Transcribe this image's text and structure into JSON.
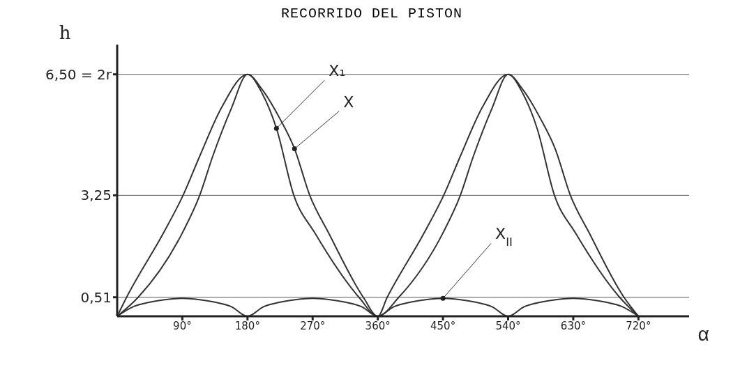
{
  "chart_data": {
    "type": "line",
    "title": "RECORRIDO DEL PISTON",
    "xlabel": "α",
    "ylabel": "h",
    "xlim": [
      0,
      790
    ],
    "ylim": [
      0,
      7.3
    ],
    "xticks": [
      {
        "value": 90,
        "label": "90°"
      },
      {
        "value": 180,
        "label": "180°"
      },
      {
        "value": 270,
        "label": "270°"
      },
      {
        "value": 360,
        "label": "360°"
      },
      {
        "value": 450,
        "label": "450°"
      },
      {
        "value": 540,
        "label": "540°"
      },
      {
        "value": 630,
        "label": "630°"
      },
      {
        "value": 720,
        "label": "720°"
      }
    ],
    "yticks": [
      {
        "value": 0.51,
        "label": "0,51"
      },
      {
        "value": 3.25,
        "label": "3,25"
      },
      {
        "value": 6.5,
        "label": "6,50 = 2r"
      }
    ],
    "grid": "y",
    "marker": "none",
    "line_style": "solid",
    "series": [
      {
        "name": "X₁",
        "color": "#333333",
        "x": [
          0,
          29,
          90,
          114,
          132,
          158,
          180,
          200,
          220,
          244,
          273,
          334,
          360,
          389,
          450,
          474,
          492,
          518,
          540,
          560,
          580,
          604,
          633,
          694,
          720
        ],
        "values": [
          0,
          0.51,
          2.24,
          3.25,
          4.3,
          5.6,
          6.5,
          6.0,
          5.05,
          3.25,
          2.24,
          0.51,
          0,
          0.51,
          2.24,
          3.25,
          4.3,
          5.6,
          6.5,
          6.0,
          5.05,
          3.25,
          2.24,
          0.51,
          0
        ]
      },
      {
        "name": "X",
        "color": "#333333",
        "x": [
          0,
          13,
          64,
          91,
          114,
          144,
          180,
          200,
          225,
          245,
          266,
          292,
          340,
          360,
          373,
          424,
          451,
          474,
          504,
          540,
          560,
          585,
          605,
          626,
          652,
          700,
          720
        ],
        "values": [
          0,
          0.51,
          2.24,
          3.25,
          4.3,
          5.6,
          6.5,
          6.1,
          5.3,
          4.5,
          3.25,
          2.24,
          0.51,
          0,
          0.51,
          2.24,
          3.25,
          4.3,
          5.6,
          6.5,
          6.1,
          5.3,
          4.5,
          3.25,
          2.24,
          0.51,
          0
        ]
      },
      {
        "name": "X$_{II}$",
        "color": "#333333",
        "x": [
          0,
          22.5,
          45,
          67.5,
          90,
          112.5,
          135,
          157.5,
          180,
          202.5,
          225,
          247.5,
          270,
          292.5,
          315,
          337.5,
          360,
          382.5,
          405,
          427.5,
          450,
          472.5,
          495,
          517.5,
          540,
          562.5,
          585,
          607.5,
          630,
          652.5,
          675,
          697.5,
          720
        ],
        "values": [
          0,
          0.26,
          0.38,
          0.45,
          0.48,
          0.45,
          0.38,
          0.26,
          0,
          0.26,
          0.38,
          0.45,
          0.48,
          0.45,
          0.38,
          0.26,
          0,
          0.26,
          0.38,
          0.45,
          0.48,
          0.45,
          0.38,
          0.26,
          0,
          0.26,
          0.38,
          0.45,
          0.48,
          0.45,
          0.38,
          0.26,
          0
        ]
      }
    ]
  }
}
